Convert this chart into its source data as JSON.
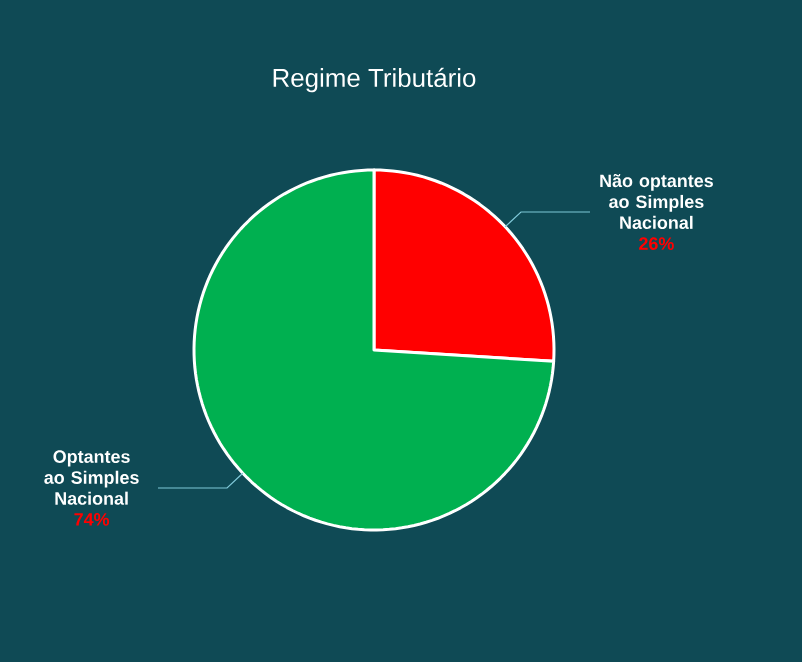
{
  "chart_data": {
    "type": "pie",
    "title": "Regime Tributário",
    "categories": [
      "Não optantes ao Simples Nacional",
      "Optantes ao Simples Nacional"
    ],
    "values": [
      26,
      74
    ],
    "colors": [
      "#ff0000",
      "#00b050"
    ],
    "value_labels": [
      "26%",
      "74%"
    ]
  }
}
